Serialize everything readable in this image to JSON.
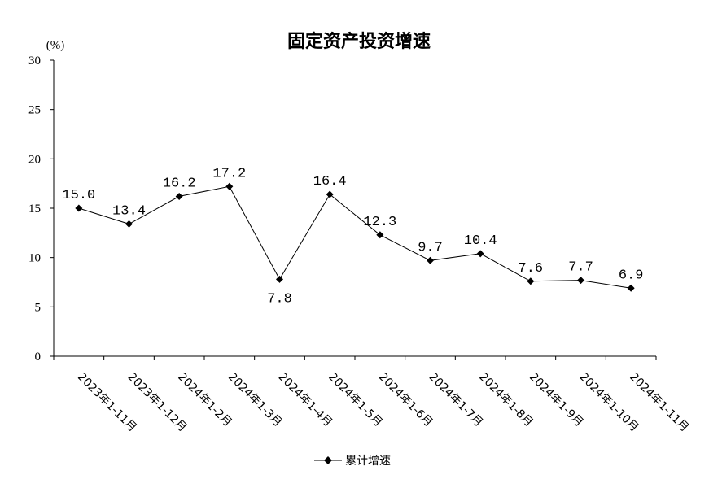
{
  "chart_data": {
    "type": "line",
    "title": "固定资产投资增速",
    "ylabel": "(%)",
    "xlabel": "",
    "ylim": [
      0,
      30
    ],
    "yticks": [
      0,
      5,
      10,
      15,
      20,
      25,
      30
    ],
    "grid": false,
    "legend_position": "bottom",
    "categories": [
      "2023年1-11月",
      "2023年1-12月",
      "2024年1-2月",
      "2024年1-3月",
      "2024年1-4月",
      "2024年1-5月",
      "2024年1-6月",
      "2024年1-7月",
      "2024年1-8月",
      "2024年1-9月",
      "2024年1-10月",
      "2024年1-11月"
    ],
    "series": [
      {
        "name": "累计增速",
        "values": [
          15.0,
          13.4,
          16.2,
          17.2,
          7.8,
          16.4,
          12.3,
          9.7,
          10.4,
          7.6,
          7.7,
          6.9
        ],
        "labels": [
          "15.0",
          "13.4",
          "16.2",
          "17.2",
          "7.8",
          "16.4",
          "12.3",
          "9.7",
          "10.4",
          "7.6",
          "7.7",
          "6.9"
        ],
        "color": "#000000",
        "marker": "diamond"
      }
    ]
  }
}
